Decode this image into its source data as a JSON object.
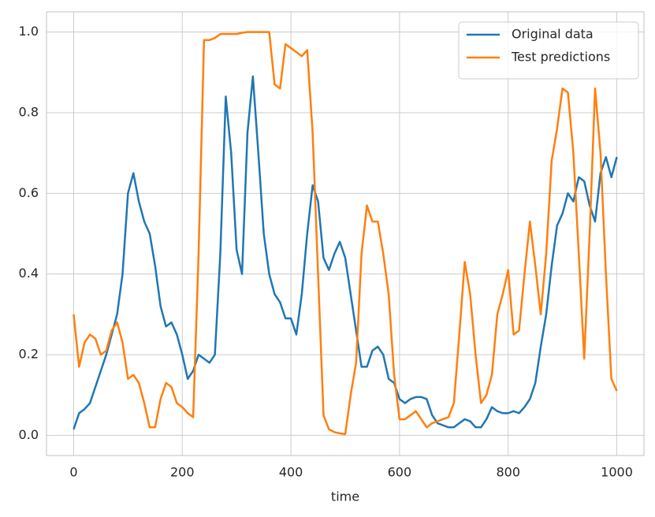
{
  "chart_data": {
    "type": "line",
    "x_label": "time",
    "x": [
      0,
      10,
      20,
      30,
      40,
      50,
      60,
      70,
      80,
      90,
      100,
      110,
      120,
      130,
      140,
      150,
      160,
      170,
      180,
      190,
      200,
      210,
      220,
      230,
      240,
      250,
      260,
      270,
      280,
      290,
      300,
      310,
      320,
      330,
      340,
      350,
      360,
      370,
      380,
      390,
      400,
      410,
      420,
      430,
      440,
      450,
      460,
      470,
      480,
      490,
      500,
      510,
      520,
      530,
      540,
      550,
      560,
      570,
      580,
      590,
      600,
      610,
      620,
      630,
      640,
      650,
      660,
      670,
      680,
      690,
      700,
      710,
      720,
      730,
      740,
      750,
      760,
      770,
      780,
      790,
      800,
      810,
      820,
      830,
      840,
      850,
      860,
      870,
      880,
      890,
      900,
      910,
      920,
      930,
      940,
      950,
      960,
      970,
      980,
      990,
      1000
    ],
    "series": [
      {
        "name": "Original data",
        "color": "#1f77b4",
        "values": [
          0.015,
          0.055,
          0.065,
          0.08,
          0.12,
          0.16,
          0.2,
          0.25,
          0.3,
          0.4,
          0.6,
          0.65,
          0.58,
          0.53,
          0.5,
          0.42,
          0.32,
          0.27,
          0.28,
          0.25,
          0.2,
          0.14,
          0.16,
          0.2,
          0.19,
          0.18,
          0.2,
          0.45,
          0.84,
          0.7,
          0.46,
          0.4,
          0.75,
          0.89,
          0.7,
          0.5,
          0.4,
          0.35,
          0.33,
          0.29,
          0.29,
          0.25,
          0.35,
          0.5,
          0.62,
          0.58,
          0.44,
          0.41,
          0.45,
          0.48,
          0.44,
          0.35,
          0.26,
          0.17,
          0.17,
          0.21,
          0.22,
          0.2,
          0.14,
          0.13,
          0.09,
          0.08,
          0.09,
          0.095,
          0.095,
          0.09,
          0.05,
          0.03,
          0.025,
          0.02,
          0.02,
          0.03,
          0.04,
          0.035,
          0.02,
          0.02,
          0.04,
          0.07,
          0.06,
          0.055,
          0.055,
          0.06,
          0.055,
          0.07,
          0.09,
          0.13,
          0.22,
          0.3,
          0.42,
          0.52,
          0.55,
          0.6,
          0.58,
          0.64,
          0.63,
          0.57,
          0.53,
          0.65,
          0.69,
          0.64,
          0.69
        ]
      },
      {
        "name": "Test predictions",
        "color": "#ff7f0e",
        "values": [
          0.3,
          0.17,
          0.23,
          0.25,
          0.24,
          0.2,
          0.21,
          0.26,
          0.28,
          0.23,
          0.14,
          0.15,
          0.13,
          0.08,
          0.02,
          0.02,
          0.09,
          0.13,
          0.12,
          0.08,
          0.07,
          0.055,
          0.045,
          0.45,
          0.98,
          0.98,
          0.985,
          0.995,
          0.995,
          0.995,
          0.995,
          0.998,
          1,
          1,
          1,
          1,
          1,
          0.87,
          0.86,
          0.97,
          0.96,
          0.95,
          0.94,
          0.955,
          0.75,
          0.4,
          0.05,
          0.015,
          0.008,
          0.005,
          0.003,
          0.1,
          0.18,
          0.45,
          0.57,
          0.53,
          0.53,
          0.45,
          0.35,
          0.15,
          0.04,
          0.04,
          0.05,
          0.06,
          0.04,
          0.02,
          0.03,
          0.035,
          0.04,
          0.045,
          0.08,
          0.25,
          0.43,
          0.35,
          0.2,
          0.08,
          0.1,
          0.15,
          0.3,
          0.35,
          0.41,
          0.25,
          0.26,
          0.4,
          0.53,
          0.42,
          0.3,
          0.45,
          0.68,
          0.76,
          0.86,
          0.85,
          0.7,
          0.45,
          0.19,
          0.5,
          0.86,
          0.7,
          0.4,
          0.14,
          0.11
        ]
      }
    ],
    "xlim": [
      -50,
      1050
    ],
    "ylim": [
      -0.05,
      1.05
    ],
    "xticks": [
      0,
      200,
      400,
      600,
      800,
      1000
    ],
    "yticks": [
      {
        "value": 0,
        "label": "0.0"
      },
      {
        "value": 0.2,
        "label": "0.2"
      },
      {
        "value": 0.4,
        "label": "0.4"
      },
      {
        "value": 0.6,
        "label": "0.6"
      },
      {
        "value": 0.8,
        "label": "0.8"
      },
      {
        "value": 1,
        "label": "1.0"
      }
    ],
    "grid": true,
    "legend": "upper right"
  }
}
